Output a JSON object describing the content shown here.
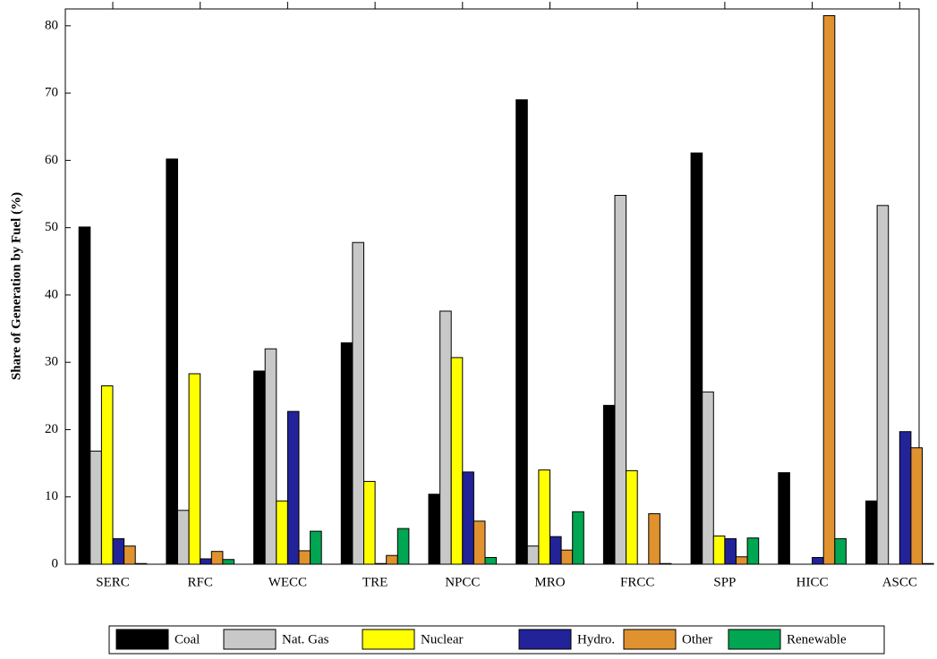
{
  "chart_data": {
    "type": "bar",
    "y_label": "Share of Generation by Fuel (%)",
    "categories": [
      "SERC",
      "RFC",
      "WECC",
      "TRE",
      "NPCC",
      "MRO",
      "FRCC",
      "SPP",
      "HICC",
      "ASCC"
    ],
    "series": [
      {
        "name": "Coal",
        "color": "#000000",
        "values": [
          50.1,
          60.2,
          28.7,
          32.9,
          10.4,
          69.0,
          23.6,
          61.1,
          13.6,
          9.4
        ]
      },
      {
        "name": "Nat. Gas",
        "color": "#c8c8c8",
        "values": [
          16.8,
          8.0,
          32.0,
          47.8,
          37.6,
          2.7,
          54.8,
          25.6,
          0,
          53.3
        ]
      },
      {
        "name": "Nuclear",
        "color": "#ffff00",
        "values": [
          26.5,
          28.3,
          9.4,
          12.3,
          30.7,
          14.0,
          13.9,
          4.2,
          0,
          0
        ]
      },
      {
        "name": "Hydro.",
        "color": "#222299",
        "values": [
          3.8,
          0.8,
          22.7,
          0.1,
          13.7,
          4.1,
          0,
          3.8,
          1.0,
          19.7
        ]
      },
      {
        "name": "Other",
        "color": "#e0922f",
        "values": [
          2.7,
          1.9,
          2.0,
          1.3,
          6.4,
          2.1,
          7.5,
          1.1,
          81.5,
          17.3
        ]
      },
      {
        "name": "Renewable",
        "color": "#00a651",
        "values": [
          0.1,
          0.7,
          4.9,
          5.3,
          1.0,
          7.8,
          0.1,
          3.9,
          3.8,
          0.1
        ]
      }
    ],
    "ylim": [
      0,
      82.5
    ],
    "yticks": [
      0,
      10,
      20,
      30,
      40,
      50,
      60,
      70,
      80
    ],
    "grid": false
  }
}
